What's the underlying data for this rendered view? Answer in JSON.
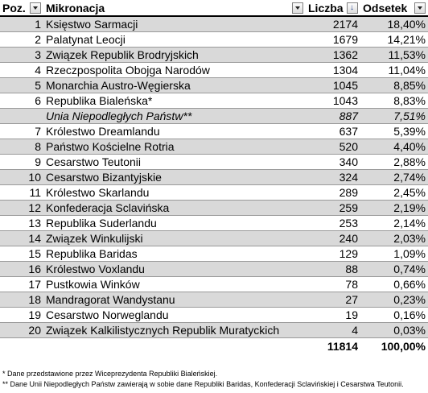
{
  "header": {
    "pos": "Poz.",
    "name": "Mikronacja",
    "count": "Liczba",
    "share": "Odsetek"
  },
  "rows": [
    {
      "pos": "1",
      "name": "Księstwo Sarmacji",
      "count": "2174",
      "share": "18,40%"
    },
    {
      "pos": "2",
      "name": "Palatynat Leocji",
      "count": "1679",
      "share": "14,21%"
    },
    {
      "pos": "3",
      "name": "Związek Republik Brodryjskich",
      "count": "1362",
      "share": "11,53%"
    },
    {
      "pos": "4",
      "name": "Rzeczpospolita Obojga Narodów",
      "count": "1304",
      "share": "11,04%"
    },
    {
      "pos": "5",
      "name": "Monarchia Austro-Węgierska",
      "count": "1045",
      "share": "8,85%"
    },
    {
      "pos": "6",
      "name": "Republika Bialeńska*",
      "count": "1043",
      "share": "8,83%"
    },
    {
      "pos": "",
      "name": "Unia Niepodległych Państw**",
      "count": "887",
      "share": "7,51%",
      "italic": true
    },
    {
      "pos": "7",
      "name": "Królestwo Dreamlandu",
      "count": "637",
      "share": "5,39%"
    },
    {
      "pos": "8",
      "name": "Państwo Kościelne Rotria",
      "count": "520",
      "share": "4,40%"
    },
    {
      "pos": "9",
      "name": "Cesarstwo Teutonii",
      "count": "340",
      "share": "2,88%"
    },
    {
      "pos": "10",
      "name": "Cesarstwo Bizantyjskie",
      "count": "324",
      "share": "2,74%"
    },
    {
      "pos": "11",
      "name": "Królestwo Skarlandu",
      "count": "289",
      "share": "2,45%"
    },
    {
      "pos": "12",
      "name": "Konfederacja Sclavińska",
      "count": "259",
      "share": "2,19%"
    },
    {
      "pos": "13",
      "name": "Republika Suderlandu",
      "count": "253",
      "share": "2,14%"
    },
    {
      "pos": "14",
      "name": "Związek Winkulijski",
      "count": "240",
      "share": "2,03%"
    },
    {
      "pos": "15",
      "name": "Republika Baridas",
      "count": "129",
      "share": "1,09%"
    },
    {
      "pos": "16",
      "name": "Królestwo Voxlandu",
      "count": "88",
      "share": "0,74%"
    },
    {
      "pos": "17",
      "name": "Pustkowia Winków",
      "count": "78",
      "share": "0,66%"
    },
    {
      "pos": "18",
      "name": "Mandragorat Wandystanu",
      "count": "27",
      "share": "0,23%"
    },
    {
      "pos": "19",
      "name": "Cesarstwo Norweglandu",
      "count": "19",
      "share": "0,16%"
    },
    {
      "pos": "20",
      "name": "Związek Kalkilistycznych Republik Muratyckich",
      "count": "4",
      "share": "0,03%"
    }
  ],
  "totals": {
    "count": "11814",
    "share": "100,00%"
  },
  "footnotes": [
    "* Dane przedstawione przez Wiceprezydenta Republiki Bialeńskiej.",
    "** Dane Unii Niepodległych Państw zawierają w sobie dane Republiki Baridas, Konfederacji Sclavińskiej i Cesarstwa Teutonii."
  ]
}
